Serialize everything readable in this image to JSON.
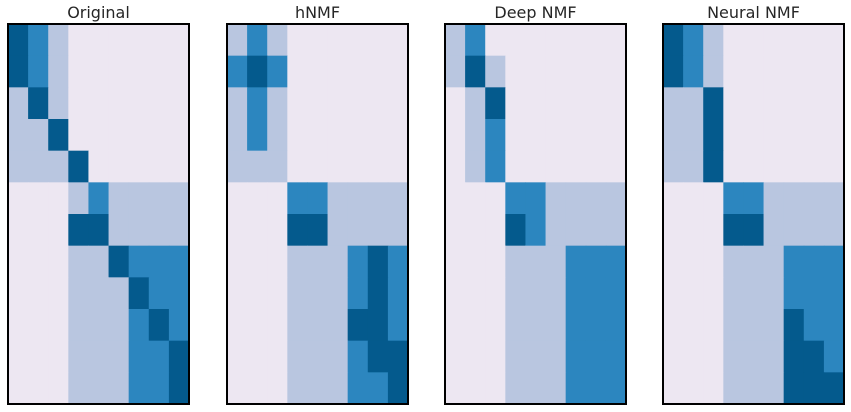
{
  "chart_data": [
    {
      "type": "heatmap",
      "title": "Original",
      "rows": 12,
      "cols": 9,
      "values": [
        [
          3,
          2,
          1,
          0,
          0,
          0,
          0,
          0,
          0
        ],
        [
          3,
          2,
          1,
          0,
          0,
          0,
          0,
          0,
          0
        ],
        [
          1,
          3,
          1,
          0,
          0,
          0,
          0,
          0,
          0
        ],
        [
          1,
          1,
          3,
          0,
          0,
          0,
          0,
          0,
          0
        ],
        [
          1,
          1,
          1,
          3,
          0,
          0,
          0,
          0,
          0
        ],
        [
          0,
          0,
          0,
          1,
          2,
          1,
          1,
          1,
          1
        ],
        [
          0,
          0,
          0,
          3,
          3,
          1,
          1,
          1,
          1
        ],
        [
          0,
          0,
          0,
          1,
          1,
          3,
          2,
          2,
          2
        ],
        [
          0,
          0,
          0,
          1,
          1,
          1,
          3,
          2,
          2
        ],
        [
          0,
          0,
          0,
          1,
          1,
          1,
          2,
          3,
          2
        ],
        [
          0,
          0,
          0,
          1,
          1,
          1,
          2,
          2,
          3
        ],
        [
          0,
          0,
          0,
          1,
          1,
          1,
          2,
          2,
          3
        ]
      ]
    },
    {
      "type": "heatmap",
      "title": "hNMF",
      "rows": 12,
      "cols": 9,
      "values": [
        [
          1,
          2,
          1,
          0,
          0,
          0,
          0,
          0,
          0
        ],
        [
          2,
          3,
          2,
          0,
          0,
          0,
          0,
          0,
          0
        ],
        [
          1,
          2,
          1,
          0,
          0,
          0,
          0,
          0,
          0
        ],
        [
          1,
          2,
          1,
          0,
          0,
          0,
          0,
          0,
          0
        ],
        [
          1,
          1,
          1,
          0,
          0,
          0,
          0,
          0,
          0
        ],
        [
          0,
          0,
          0,
          2,
          2,
          1,
          1,
          1,
          1
        ],
        [
          0,
          0,
          0,
          3,
          3,
          1,
          1,
          1,
          1
        ],
        [
          0,
          0,
          0,
          1,
          1,
          1,
          2,
          3,
          2
        ],
        [
          0,
          0,
          0,
          1,
          1,
          1,
          2,
          3,
          2
        ],
        [
          0,
          0,
          0,
          1,
          1,
          1,
          3,
          3,
          2
        ],
        [
          0,
          0,
          0,
          1,
          1,
          1,
          2,
          3,
          3
        ],
        [
          0,
          0,
          0,
          1,
          1,
          1,
          2,
          2,
          3
        ]
      ]
    },
    {
      "type": "heatmap",
      "title": "Deep NMF",
      "rows": 12,
      "cols": 9,
      "values": [
        [
          1,
          2,
          0,
          0,
          0,
          0,
          0,
          0,
          0
        ],
        [
          1,
          3,
          1,
          0,
          0,
          0,
          0,
          0,
          0
        ],
        [
          0,
          1,
          3,
          0,
          0,
          0,
          0,
          0,
          0
        ],
        [
          0,
          1,
          2,
          0,
          0,
          0,
          0,
          0,
          0
        ],
        [
          0,
          1,
          2,
          0,
          0,
          0,
          0,
          0,
          0
        ],
        [
          0,
          0,
          0,
          2,
          2,
          1,
          1,
          1,
          1
        ],
        [
          0,
          0,
          0,
          3,
          2,
          1,
          1,
          1,
          1
        ],
        [
          0,
          0,
          0,
          1,
          1,
          1,
          2,
          2,
          2
        ],
        [
          0,
          0,
          0,
          1,
          1,
          1,
          2,
          2,
          2
        ],
        [
          0,
          0,
          0,
          1,
          1,
          1,
          2,
          2,
          2
        ],
        [
          0,
          0,
          0,
          1,
          1,
          1,
          2,
          2,
          2
        ],
        [
          0,
          0,
          0,
          1,
          1,
          1,
          2,
          2,
          2
        ]
      ]
    },
    {
      "type": "heatmap",
      "title": "Neural NMF",
      "rows": 12,
      "cols": 9,
      "values": [
        [
          3,
          2,
          1,
          0,
          0,
          0,
          0,
          0,
          0
        ],
        [
          3,
          2,
          1,
          0,
          0,
          0,
          0,
          0,
          0
        ],
        [
          1,
          1,
          3,
          0,
          0,
          0,
          0,
          0,
          0
        ],
        [
          1,
          1,
          3,
          0,
          0,
          0,
          0,
          0,
          0
        ],
        [
          1,
          1,
          3,
          0,
          0,
          0,
          0,
          0,
          0
        ],
        [
          0,
          0,
          0,
          2,
          2,
          1,
          1,
          1,
          1
        ],
        [
          0,
          0,
          0,
          3,
          3,
          1,
          1,
          1,
          1
        ],
        [
          0,
          0,
          0,
          1,
          1,
          1,
          2,
          2,
          2
        ],
        [
          0,
          0,
          0,
          1,
          1,
          1,
          2,
          2,
          2
        ],
        [
          0,
          0,
          0,
          1,
          1,
          1,
          3,
          2,
          2
        ],
        [
          0,
          0,
          0,
          1,
          1,
          1,
          3,
          3,
          2
        ],
        [
          0,
          0,
          0,
          1,
          1,
          1,
          3,
          3,
          3
        ]
      ]
    }
  ],
  "colors": {
    "level_0": "#ede7f2",
    "level_1": "#b9c6e0",
    "level_2": "#2c86bf",
    "level_3": "#045a8d",
    "frame": "#000000"
  }
}
